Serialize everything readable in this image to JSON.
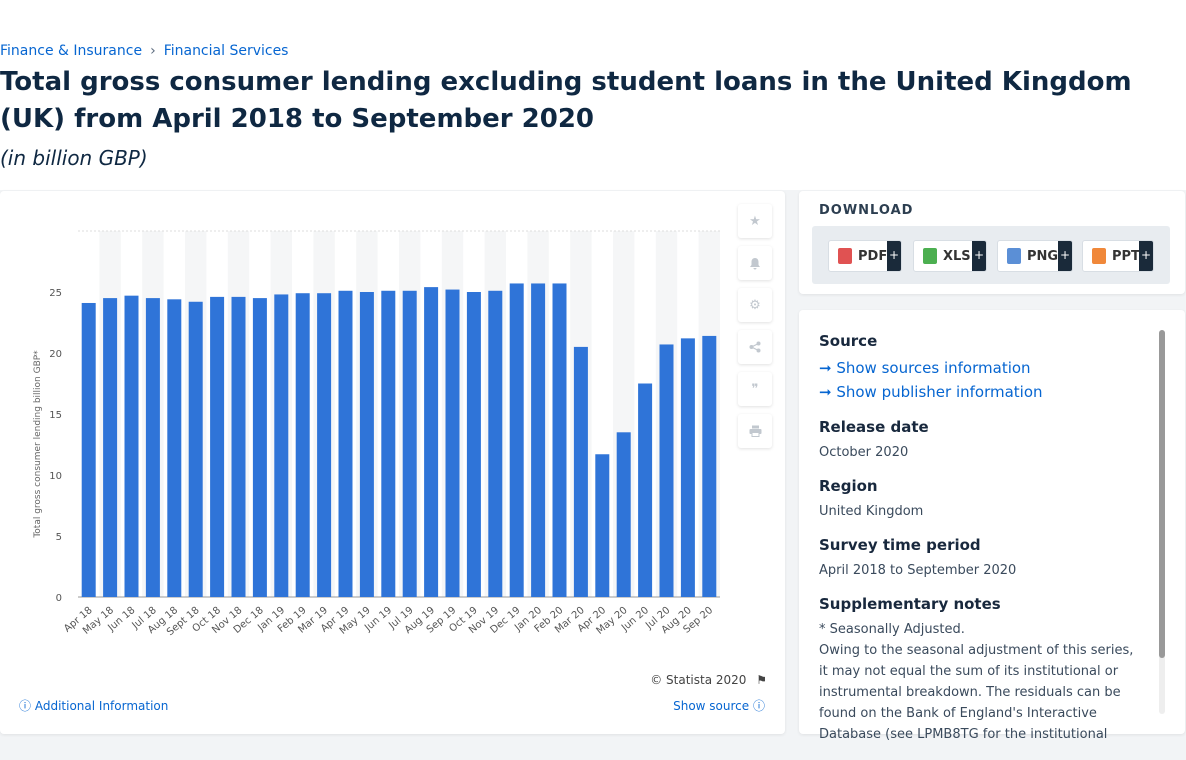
{
  "breadcrumb": {
    "item1": "Finance & Insurance",
    "sep": "›",
    "item2": "Financial Services"
  },
  "title": "Total gross consumer lending excluding student loans in the United Kingdom (UK) from April 2018 to September 2020",
  "subtitle": "(in billion GBP)",
  "chart_data": {
    "type": "bar",
    "ylabel": "Total gross consumer lending billion GBP*",
    "xlabel": "",
    "ylim": [
      0,
      30
    ],
    "yticks": [
      0,
      5,
      10,
      15,
      20,
      25
    ],
    "grid": true,
    "categories": [
      "Apr 18",
      "May 18",
      "Jun 18",
      "Jul 18",
      "Aug 18",
      "Sept 18",
      "Oct 18",
      "Nov 18",
      "Dec 18",
      "Jan 19",
      "Feb 19",
      "Mar 19",
      "Apr 19",
      "May 19",
      "Jun 19",
      "Jul 19",
      "Aug 19",
      "Sep 19",
      "Oct 19",
      "Nov 19",
      "Dec 19",
      "Jan 20",
      "Feb 20",
      "Mar 20",
      "Apr 20",
      "May 20",
      "Jun 20",
      "Jul 20",
      "Aug 20",
      "Sep 20"
    ],
    "values": [
      24.1,
      24.5,
      24.7,
      24.5,
      24.4,
      24.2,
      24.6,
      24.6,
      24.5,
      24.8,
      24.9,
      24.9,
      25.1,
      25.0,
      25.1,
      25.1,
      25.4,
      25.2,
      25.0,
      25.1,
      25.7,
      25.7,
      25.7,
      20.5,
      11.7,
      13.5,
      17.5,
      20.7,
      21.2,
      21.4
    ],
    "bar_color": "#2f74d8"
  },
  "copyright": "© Statista 2020",
  "additional_info": "Additional Information",
  "show_source": "Show source",
  "download": {
    "heading": "DOWNLOAD",
    "buttons": [
      {
        "label": "PDF",
        "plus": "+",
        "color": "#e05252"
      },
      {
        "label": "XLS",
        "plus": "+",
        "color": "#4caf50"
      },
      {
        "label": "PNG",
        "plus": "+",
        "color": "#5b8fd6"
      },
      {
        "label": "PPT",
        "plus": "+",
        "color": "#f0883a"
      }
    ]
  },
  "info": {
    "source_heading": "Source",
    "show_sources": "Show sources information",
    "show_publisher": "Show publisher information",
    "release_heading": "Release date",
    "release_value": "October 2020",
    "region_heading": "Region",
    "region_value": "United Kingdom",
    "survey_heading": "Survey time period",
    "survey_value": "April 2018 to September 2020",
    "notes_heading": "Supplementary notes",
    "notes_line1": "* Seasonally Adjusted.",
    "notes_line2": "Owing to the seasonal adjustment of this series, it may not equal the sum of its institutional or instrumental breakdown. The residuals can be found on the Bank of England's Interactive Database (see LPMB8TG for the institutional"
  },
  "side_icons": [
    "star-icon",
    "bell-icon",
    "gear-icon",
    "share-icon",
    "quote-icon",
    "print-icon"
  ]
}
